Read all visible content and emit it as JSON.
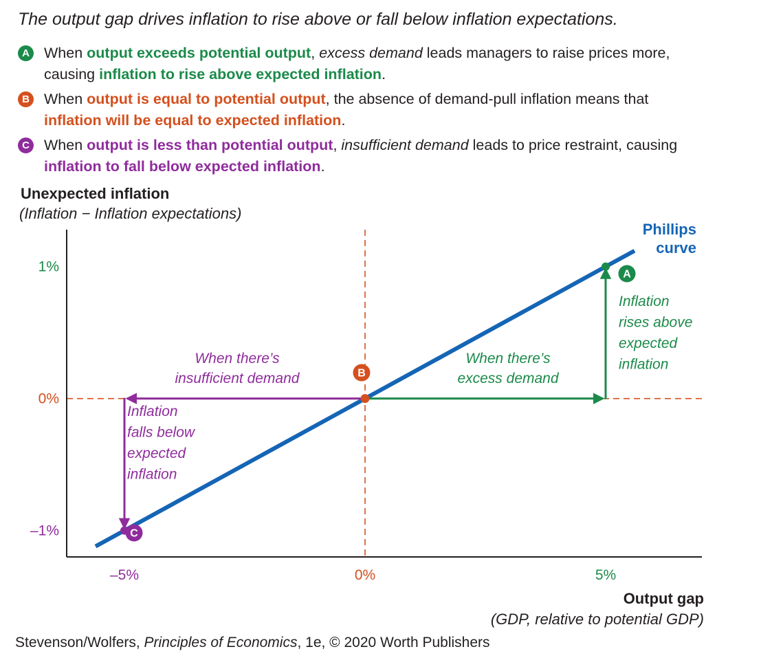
{
  "headline": "The output gap drives inflation to rise above or fall below inflation expectations.",
  "notes": [
    {
      "badge": "A",
      "p1": "When ",
      "h1": "output exceeds potential output",
      "p2": ", ",
      "it": "excess demand",
      "p3": " leads managers to raise prices more,",
      "p4": "causing ",
      "h2": "inflation to rise above expected inflation",
      "p5": "."
    },
    {
      "badge": "B",
      "p1": "When ",
      "h1": "output is equal to potential output",
      "p2": ", the absence of demand-pull inflation means that",
      "h2": "inflation will be equal to expected inflation",
      "p5": "."
    },
    {
      "badge": "C",
      "p1": "When ",
      "h1": "output is less than potential output",
      "p2": ", ",
      "it": "insufficient demand",
      "p3": " leads to price restraint, causing",
      "h2": "inflation to fall below expected inflation",
      "p5": "."
    }
  ],
  "credit": {
    "a": "Stevenson/Wolfers, ",
    "b": "Principles of Economics",
    "c": ", 1e, © 2020 Worth Publishers"
  },
  "colors": {
    "green": "#1b8a4a",
    "orange": "#d4501e",
    "purple": "#8f2c9c",
    "blue": "#1565b5",
    "axis": "#231f20"
  },
  "chart_data": {
    "type": "line",
    "ylabel": "Unexpected inflation",
    "ylabel_sub": "(Inflation − Inflation expectations)",
    "xlabel": "Output gap",
    "xlabel_sub": "(GDP, relative to potential GDP)",
    "xlim": [
      -6.2,
      7.0
    ],
    "ylim": [
      -1.2,
      1.28
    ],
    "x_ticks": [
      {
        "value": -5,
        "label": "–5%"
      },
      {
        "value": 0,
        "label": "0%"
      },
      {
        "value": 5,
        "label": "5%"
      }
    ],
    "y_ticks": [
      {
        "value": 1,
        "label": "1%"
      },
      {
        "value": 0,
        "label": "0%"
      },
      {
        "value": -1,
        "label": "–1%"
      }
    ],
    "series": [
      {
        "name": "Phillips curve",
        "name_lines": [
          "Phillips",
          "curve"
        ],
        "x": [
          -5.6,
          5.6
        ],
        "y": [
          -1.12,
          1.12
        ]
      }
    ],
    "points": [
      {
        "label": "A",
        "x": 5,
        "y": 1
      },
      {
        "label": "B",
        "x": 0,
        "y": 0
      },
      {
        "label": "C",
        "x": -5,
        "y": -1
      }
    ],
    "annotations": {
      "excess_demand": [
        "When there’s",
        "excess demand"
      ],
      "insufficient_demand": [
        "When there’s",
        "insufficient demand"
      ],
      "rises": [
        "Inflation",
        "rises above",
        "expected",
        "inflation"
      ],
      "falls": [
        "Inflation",
        "falls below",
        "expected",
        "inflation"
      ]
    }
  }
}
